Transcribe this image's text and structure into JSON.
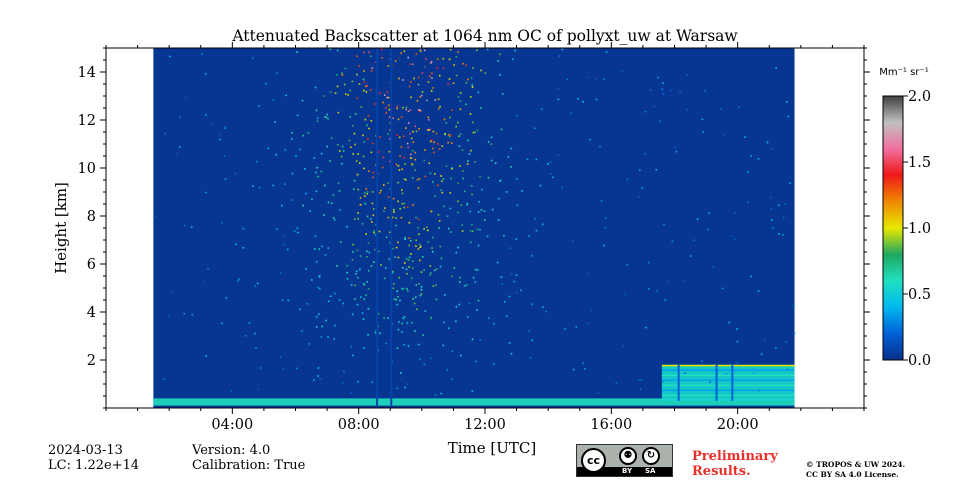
{
  "chart_data": {
    "type": "heatmap",
    "title": "Attenuated Backscatter at 1064 nm OC of pollyxt_uw at Warsaw",
    "xlabel": "Time [UTC]",
    "ylabel": "Height [km]",
    "x_unit": "hours UTC",
    "xlim": [
      0,
      24
    ],
    "ylim": [
      0,
      15
    ],
    "x_ticks": [
      {
        "value": 4,
        "label": "04:00"
      },
      {
        "value": 8,
        "label": "08:00"
      },
      {
        "value": 12,
        "label": "12:00"
      },
      {
        "value": 16,
        "label": "16:00"
      },
      {
        "value": 20,
        "label": "20:00"
      }
    ],
    "y_ticks": [
      {
        "value": 2,
        "label": "2"
      },
      {
        "value": 4,
        "label": "4"
      },
      {
        "value": 6,
        "label": "6"
      },
      {
        "value": 8,
        "label": "8"
      },
      {
        "value": 10,
        "label": "10"
      },
      {
        "value": 12,
        "label": "12"
      },
      {
        "value": 14,
        "label": "14"
      }
    ],
    "data_time_range": [
      1.5,
      21.8
    ],
    "colorbar": {
      "label": "Mm⁻¹ sr⁻¹",
      "range": [
        0.0,
        2.0
      ],
      "ticks": [
        {
          "value": 0.0,
          "label": "0.0"
        },
        {
          "value": 0.5,
          "label": "0.5"
        },
        {
          "value": 1.0,
          "label": "1.0"
        },
        {
          "value": 1.5,
          "label": "1.5"
        },
        {
          "value": 2.0,
          "label": "2.0"
        }
      ],
      "colors": [
        "#08308a",
        "#0060d8",
        "#00b8f0",
        "#20e0c0",
        "#20a860",
        "#e8e800",
        "#f08800",
        "#f01818",
        "#f070a0",
        "#c0c0c0",
        "#404040"
      ]
    },
    "features": [
      {
        "name": "background",
        "value": 0.05
      },
      {
        "name": "near-surface layer",
        "height_km": [
          0.1,
          0.4
        ],
        "time": [
          1.5,
          21.8
        ],
        "value": 0.6
      },
      {
        "name": "evening boundary layer",
        "height_km": [
          0.3,
          1.8
        ],
        "time": [
          17.6,
          21.8
        ],
        "value": 0.55
      },
      {
        "name": "noisy daytime signal",
        "height_km": [
          2,
          15
        ],
        "time": [
          5.5,
          14.5
        ],
        "value_range": [
          0.3,
          1.6
        ]
      }
    ]
  },
  "footer": {
    "date": "2024-03-13",
    "lc": "LC: 1.22e+14",
    "version": "Version: 4.0",
    "calibration": "Calibration: True",
    "preliminary_line1": "Preliminary",
    "preliminary_line2": "Results.",
    "license_line1": "© TROPOS & UW 2024.",
    "license_line2": "CC BY SA 4.0 License.",
    "badge_cc": "cc",
    "badge_by": "BY",
    "badge_sa": "SA"
  }
}
